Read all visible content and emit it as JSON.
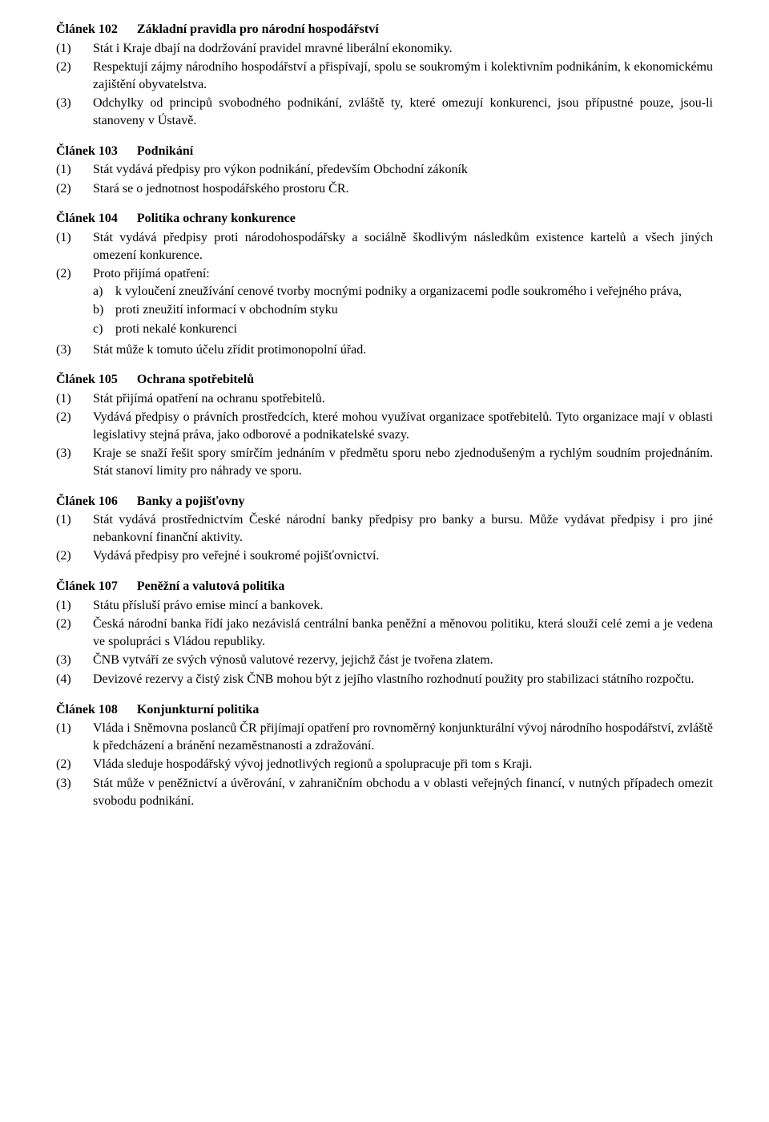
{
  "articles": [
    {
      "label": "Článek  102",
      "title": "Základní pravidla pro národní hospodářství",
      "clauses": [
        {
          "num": "(1)",
          "text": "Stát i Kraje dbají na dodržování pravidel mravné liberální ekonomiky."
        },
        {
          "num": "(2)",
          "text": "Respektují zájmy národního hospodářství a přispívají, spolu se soukromým i kolektivním podnikáním, k ekonomickému zajištění obyvatelstva."
        },
        {
          "num": "(3)",
          "text": "Odchylky od principů svobodného podnikání, zvláště ty, které omezují konkurenci, jsou přípustné pouze, jsou-li stanoveny v Ústavě."
        }
      ]
    },
    {
      "label": "Článek  103",
      "title": "Podnikání",
      "clauses": [
        {
          "num": "(1)",
          "text": "Stát vydává předpisy pro výkon podnikání, především Obchodní zákoník"
        },
        {
          "num": "(2)",
          "text": "Stará se o jednotnost hospodářského prostoru ČR."
        }
      ]
    },
    {
      "label": "Článek  104",
      "title": "Politika ochrany konkurence",
      "clauses": [
        {
          "num": "(1)",
          "text": "Stát vydává předpisy proti národohospodářsky a sociálně škodlivým následkům existence kartelů a všech jiných omezení konkurence."
        },
        {
          "num": "(2)",
          "text": "Proto přijímá opatření:",
          "subitems": [
            {
              "mark": "a)",
              "text": "k vyloučení zneužívání cenové tvorby mocnými podniky a organizacemi podle soukromého i veřejného práva,"
            },
            {
              "mark": "b)",
              "text": "proti zneužití informací v obchodním styku"
            },
            {
              "mark": "c)",
              "text": "proti nekalé konkurenci"
            }
          ]
        },
        {
          "num": "(3)",
          "text": "Stát může k tomuto účelu zřídit protimonopolní úřad."
        }
      ]
    },
    {
      "label": "Článek  105",
      "title": "Ochrana spotřebitelů",
      "clauses": [
        {
          "num": "(1)",
          "text": "Stát přijímá opatření na ochranu spotřebitelů."
        },
        {
          "num": "(2)",
          "text": "Vydává předpisy o právních prostředcích, které mohou využívat organizace spotřebitelů. Tyto organizace mají v oblasti legislativy stejná práva, jako odborové a podnikatelské svazy."
        },
        {
          "num": "(3)",
          "text": "Kraje se snaží řešit spory smírčím jednáním v předmětu sporu nebo zjednodušeným a rychlým soudním projednáním. Stát stanoví limity pro náhrady ve sporu."
        }
      ]
    },
    {
      "label": "Článek 106",
      "title": "Banky a pojišťovny",
      "clauses": [
        {
          "num": "(1)",
          "text": "Stát vydává prostřednictvím České národní banky předpisy pro banky a bursu. Může vydávat předpisy i pro jiné nebankovní finanční aktivity."
        },
        {
          "num": "(2)",
          "text": "Vydává předpisy pro veřejné i soukromé pojišťovnictví."
        }
      ]
    },
    {
      "label": "Článek  107",
      "title": "Peněžní a valutová politika",
      "clauses": [
        {
          "num": "(1)",
          "text": "Státu přísluší právo emise mincí a bankovek."
        },
        {
          "num": "(2)",
          "text": "Česká národní banka řídí jako nezávislá centrální banka peněžní a měnovou politiku, která slouží celé zemi a je vedena ve spolupráci s Vládou republiky."
        },
        {
          "num": "(3)",
          "text": "ČNB vytváří ze svých výnosů valutové rezervy, jejichž část je tvořena zlatem."
        },
        {
          "num": "(4)",
          "text": "Devizové rezervy a čistý zisk ČNB mohou být z jejího vlastního rozhodnutí použity pro stabilizaci státního rozpočtu."
        }
      ]
    },
    {
      "label": "Článek  108",
      "title": "Konjunkturní politika",
      "clauses": [
        {
          "num": "(1)",
          "text": "Vláda i Sněmovna poslanců ČR přijímají opatření pro rovnoměrný konjunkturální vývoj národního hospodářství, zvláště k předcházení a bránění nezaměstnanosti a zdražování."
        },
        {
          "num": "(2)",
          "text": "Vláda sleduje hospodářský vývoj jednotlivých regionů a spolupracuje při tom s Kraji."
        },
        {
          "num": "(3)",
          "text": "Stát může v peněžnictví a úvěrování, v zahraničním obchodu a v oblasti veřejných financí, v nutných případech omezit svobodu podnikání."
        }
      ]
    }
  ]
}
